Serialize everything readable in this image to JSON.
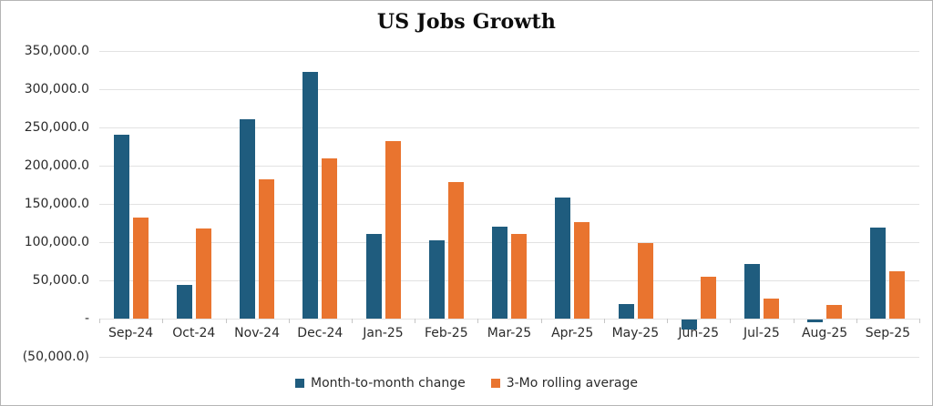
{
  "title": "US Jobs Growth",
  "chart_data": {
    "type": "bar",
    "categories": [
      "Sep-24",
      "Oct-24",
      "Nov-24",
      "Dec-24",
      "Jan-25",
      "Feb-25",
      "Mar-25",
      "Apr-25",
      "May-25",
      "Jun-25",
      "Jul-25",
      "Aug-25",
      "Sep-25"
    ],
    "series": [
      {
        "name": "Month-to-month change",
        "color": "#1f5c7e",
        "values": [
          240000,
          44000,
          261000,
          323000,
          111000,
          102000,
          120000,
          158000,
          19000,
          -13000,
          72000,
          -4000,
          119000
        ]
      },
      {
        "name": "3-Mo rolling average",
        "color": "#e9742f",
        "values": [
          131700,
          118300,
          181700,
          209300,
          231700,
          178700,
          111000,
          126700,
          99000,
          54700,
          26000,
          18300,
          62300
        ]
      }
    ],
    "ylim": [
      -50000,
      350000
    ],
    "yticks": [
      {
        "value": 350000,
        "label": "350,000.0"
      },
      {
        "value": 300000,
        "label": "300,000.0"
      },
      {
        "value": 250000,
        "label": "250,000.0"
      },
      {
        "value": 200000,
        "label": "200,000.0"
      },
      {
        "value": 150000,
        "label": "150,000.0"
      },
      {
        "value": 100000,
        "label": "100,000.0"
      },
      {
        "value": 50000,
        "label": "50,000.0"
      },
      {
        "value": 0,
        "label": "-"
      },
      {
        "value": -50000,
        "label": "(50,000.0)"
      }
    ],
    "grid": true,
    "legend_position": "bottom"
  },
  "colors": {
    "series1": "#1f5c7e",
    "series2": "#e9742f",
    "gridline": "#e2e2e2",
    "border": "#b5b5b5",
    "text": "#2b2b2b"
  }
}
